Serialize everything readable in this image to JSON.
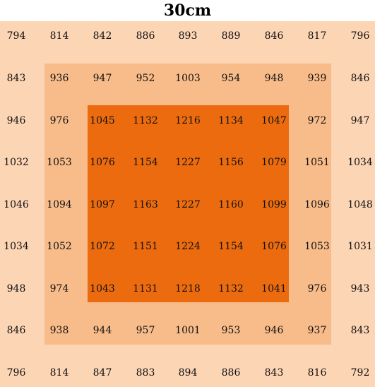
{
  "title": "30cm",
  "colors": {
    "outer": "#FCD5B5",
    "middle": "#F8BC8A",
    "inner": "#EC6B0E"
  },
  "grid": [
    [
      794,
      814,
      842,
      886,
      893,
      889,
      846,
      817,
      796
    ],
    [
      843,
      936,
      947,
      952,
      1003,
      954,
      948,
      939,
      846
    ],
    [
      946,
      976,
      1045,
      1132,
      1216,
      1134,
      1047,
      972,
      947
    ],
    [
      1032,
      1053,
      1076,
      1154,
      1227,
      1156,
      1079,
      1051,
      1034
    ],
    [
      1046,
      1094,
      1097,
      1163,
      1227,
      1160,
      1099,
      1096,
      1048
    ],
    [
      1034,
      1052,
      1072,
      1151,
      1224,
      1154,
      1076,
      1053,
      1031
    ],
    [
      948,
      974,
      1043,
      1131,
      1218,
      1132,
      1041,
      976,
      943
    ],
    [
      846,
      938,
      944,
      957,
      1001,
      953,
      946,
      937,
      843
    ],
    [
      796,
      814,
      847,
      883,
      894,
      886,
      843,
      816,
      792
    ]
  ]
}
